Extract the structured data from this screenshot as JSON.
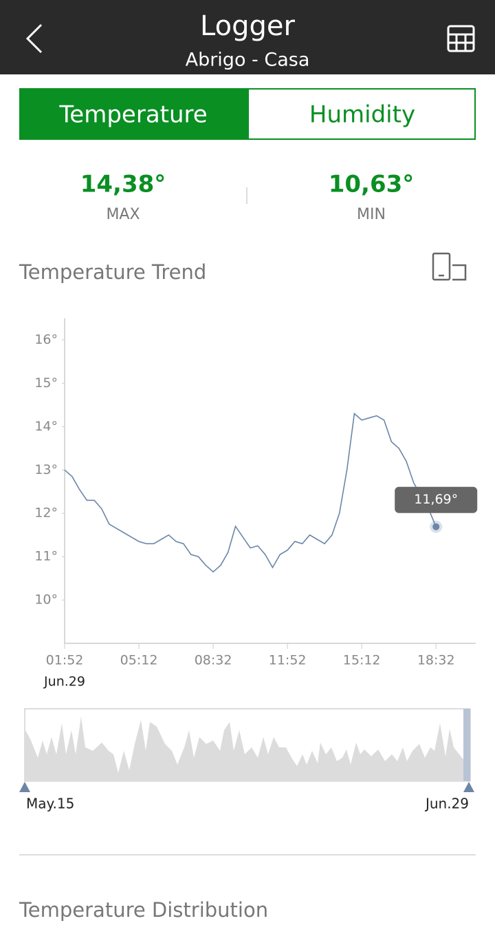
{
  "header": {
    "title": "Logger",
    "subtitle": "Abrigo - Casa"
  },
  "tabs": [
    "Temperature",
    "Humidity"
  ],
  "stats": [
    {
      "value": "14,38°",
      "label": "MAX"
    },
    {
      "value": "10,63°",
      "label": "MIN"
    }
  ],
  "trend_title": "Temperature Trend",
  "chart_data": {
    "type": "line",
    "x": [
      112,
      132,
      152,
      172,
      192,
      212,
      232,
      252,
      272,
      292,
      312,
      332,
      352,
      372,
      392,
      412,
      432,
      452,
      472,
      492,
      512,
      532,
      552,
      572,
      592,
      612,
      632,
      652,
      672,
      692,
      712,
      732,
      752,
      772,
      792,
      812,
      832,
      852,
      872,
      892,
      912,
      932,
      952,
      972,
      992,
      1012,
      1032,
      1052,
      1072,
      1092,
      1112
    ],
    "values": [
      13.0,
      12.85,
      12.55,
      12.3,
      12.3,
      12.1,
      11.75,
      11.65,
      11.55,
      11.45,
      11.35,
      11.3,
      11.3,
      11.4,
      11.5,
      11.35,
      11.3,
      11.05,
      11.0,
      10.8,
      10.65,
      10.8,
      11.1,
      11.7,
      11.45,
      11.2,
      11.25,
      11.05,
      10.75,
      11.05,
      11.15,
      11.35,
      11.3,
      11.5,
      11.4,
      11.3,
      11.5,
      12.0,
      13.0,
      14.3,
      14.15,
      14.2,
      14.25,
      14.15,
      13.65,
      13.5,
      13.2,
      12.7,
      12.4,
      12.1,
      11.69
    ],
    "color": "#6b86a8",
    "xlim": [
      112,
      1219
    ],
    "ylim": [
      9,
      16.5
    ],
    "xticks": [
      {
        "value": 112,
        "label": "01:52"
      },
      {
        "value": 312,
        "label": "05:12"
      },
      {
        "value": 512,
        "label": "08:32"
      },
      {
        "value": 712,
        "label": "11:52"
      },
      {
        "value": 912,
        "label": "15:12"
      },
      {
        "value": 1112,
        "label": "18:32"
      }
    ],
    "yticks": [
      {
        "value": 10,
        "label": "10°"
      },
      {
        "value": 11,
        "label": "11°"
      },
      {
        "value": 12,
        "label": "12°"
      },
      {
        "value": 13,
        "label": "13°"
      },
      {
        "value": 14,
        "label": "14°"
      },
      {
        "value": 15,
        "label": "15°"
      },
      {
        "value": 16,
        "label": "16°"
      }
    ],
    "annotation": "11,69°",
    "date_label": "Jun.29"
  },
  "navigator": {
    "start": "May.15",
    "end": "Jun.29"
  },
  "distribution_title": "Temperature Distribution"
}
